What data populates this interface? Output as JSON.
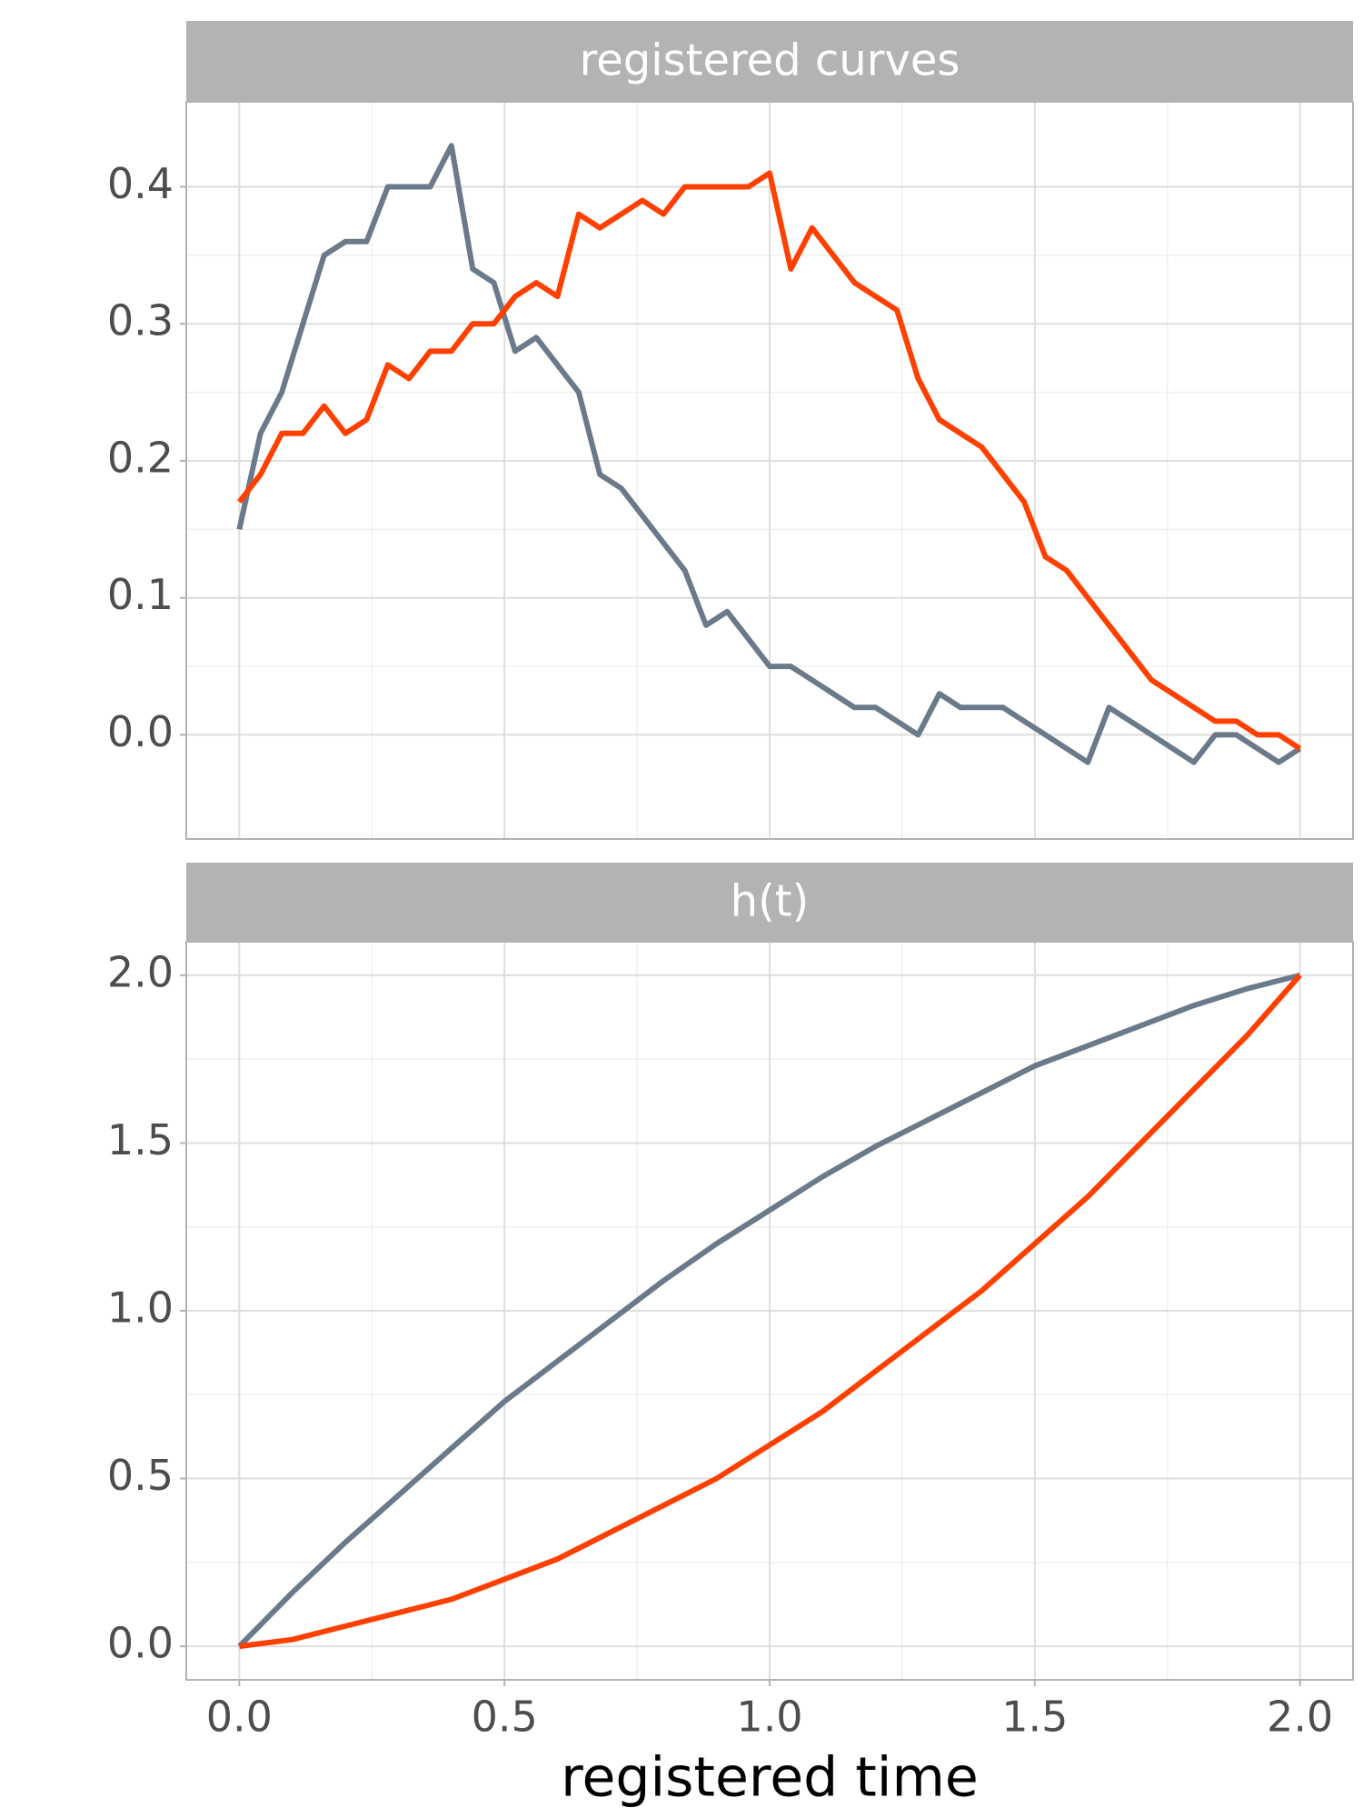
{
  "chart_data": [
    {
      "type": "line",
      "title": "registered curves",
      "x": [
        0,
        0.04,
        0.08,
        0.12,
        0.16,
        0.2,
        0.24,
        0.28,
        0.32,
        0.36,
        0.4,
        0.44,
        0.48,
        0.52,
        0.56,
        0.6,
        0.64,
        0.68,
        0.72,
        0.76,
        0.8,
        0.84,
        0.88,
        0.92,
        0.96,
        1,
        1.04,
        1.08,
        1.12,
        1.16,
        1.2,
        1.24,
        1.28,
        1.32,
        1.36,
        1.4,
        1.44,
        1.48,
        1.52,
        1.56,
        1.6,
        1.64,
        1.68,
        1.72,
        1.76,
        1.8,
        1.84,
        1.88,
        1.92,
        1.96,
        2
      ],
      "series": [
        {
          "color": "#6b7a8a",
          "values": [
            0.15,
            0.22,
            0.25,
            0.3,
            0.35,
            0.36,
            0.36,
            0.4,
            0.4,
            0.4,
            0.43,
            0.34,
            0.33,
            0.28,
            0.29,
            0.27,
            0.25,
            0.19,
            0.18,
            0.16,
            0.14,
            0.12,
            0.08,
            0.09,
            0.07,
            0.05,
            0.05,
            0.04,
            0.03,
            0.02,
            0.02,
            0.01,
            0,
            0.03,
            0.02,
            0.02,
            0.02,
            0.01,
            0,
            -0.01,
            -0.02,
            0.02,
            0.01,
            0,
            -0.01,
            -0.02,
            0,
            0,
            -0.01,
            -0.02,
            -0.01
          ]
        },
        {
          "color": "#ff4000",
          "values": [
            0.17,
            0.19,
            0.22,
            0.22,
            0.24,
            0.22,
            0.23,
            0.27,
            0.26,
            0.28,
            0.28,
            0.3,
            0.3,
            0.32,
            0.33,
            0.32,
            0.38,
            0.37,
            0.38,
            0.39,
            0.38,
            0.4,
            0.4,
            0.4,
            0.4,
            0.41,
            0.34,
            0.37,
            0.35,
            0.33,
            0.32,
            0.31,
            0.26,
            0.23,
            0.22,
            0.21,
            0.19,
            0.17,
            0.13,
            0.12,
            0.1,
            0.08,
            0.06,
            0.04,
            0.03,
            0.02,
            0.01,
            0.01,
            0,
            0,
            -0.01
          ]
        }
      ],
      "xlim": [
        -0.1,
        2.1
      ],
      "ylim": [
        -0.076,
        0.462
      ],
      "yticks": [
        {
          "value": 0,
          "label": "0.0"
        },
        0.1,
        0.2,
        0.3,
        0.4
      ],
      "grid": true
    },
    {
      "type": "line",
      "title": "h(t)",
      "x": [
        0,
        0.1,
        0.2,
        0.3,
        0.4,
        0.5,
        0.6,
        0.7,
        0.8,
        0.9,
        1,
        1.1,
        1.2,
        1.3,
        1.4,
        1.5,
        1.6,
        1.7,
        1.8,
        1.9,
        2
      ],
      "series": [
        {
          "color": "#6b7a8a",
          "values": [
            0,
            0.16,
            0.31,
            0.45,
            0.59,
            0.73,
            0.85,
            0.97,
            1.09,
            1.2,
            1.3,
            1.4,
            1.49,
            1.57,
            1.65,
            1.73,
            1.79,
            1.85,
            1.91,
            1.96,
            2
          ]
        },
        {
          "color": "#ff4000",
          "values": [
            0,
            0.02,
            0.06,
            0.1,
            0.14,
            0.2,
            0.26,
            0.34,
            0.42,
            0.5,
            0.6,
            0.7,
            0.82,
            0.94,
            1.06,
            1.2,
            1.34,
            1.5,
            1.66,
            1.82,
            2
          ]
        }
      ],
      "xlim": [
        -0.1,
        2.1
      ],
      "ylim": [
        -0.1,
        2.1
      ],
      "xticks": [
        {
          "value": 0,
          "label": "0.0"
        },
        0.5,
        {
          "value": 1,
          "label": "1.0"
        },
        1.5,
        {
          "value": 2,
          "label": "2.0"
        }
      ],
      "yticks": [
        {
          "value": 0,
          "label": "0.0"
        },
        0.5,
        {
          "value": 1,
          "label": "1.0"
        },
        1.5,
        {
          "value": 2,
          "label": "2.0"
        }
      ],
      "grid": true,
      "x_label": "registered time"
    }
  ]
}
